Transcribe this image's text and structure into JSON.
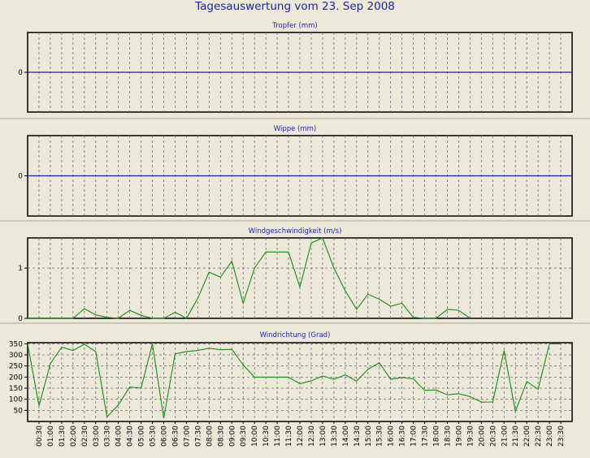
{
  "window": {
    "title": "Tagesauswertung vom 23. Sep 2008"
  },
  "chart_data": [
    {
      "id": "tropfer",
      "type": "line",
      "title": "Tropfer (mm)",
      "ylim": [
        -1,
        1
      ],
      "yticks": [
        0
      ],
      "zero_line": true,
      "x": [],
      "values": []
    },
    {
      "id": "wippe",
      "type": "line",
      "title": "Wippe (mm)",
      "ylim": [
        -1,
        1
      ],
      "yticks": [
        0
      ],
      "zero_line": true,
      "x": [],
      "values": []
    },
    {
      "id": "windgeschwindigkeit",
      "type": "line",
      "title": "Windgeschwindigkeit (m/s)",
      "ylim": [
        0,
        1.6
      ],
      "yticks": [
        0,
        1
      ],
      "x": [
        "00:00",
        "00:30",
        "01:00",
        "01:30",
        "02:00",
        "02:30",
        "03:00",
        "03:30",
        "04:00",
        "04:30",
        "05:00",
        "05:30",
        "06:00",
        "06:30",
        "07:00",
        "07:30",
        "08:00",
        "08:30",
        "09:00",
        "09:30",
        "10:00",
        "10:30",
        "11:00",
        "11:30",
        "12:00",
        "12:30",
        "13:00",
        "13:30",
        "14:00",
        "14:30",
        "15:00",
        "15:30",
        "16:00",
        "16:30",
        "17:00",
        "17:30",
        "18:00",
        "18:30",
        "19:00",
        "19:30"
      ],
      "values": [
        0,
        0,
        0,
        0,
        0,
        0.19,
        0.07,
        0.02,
        0,
        0.16,
        0.06,
        0,
        0,
        0.12,
        0,
        0.4,
        0.92,
        0.82,
        1.14,
        0.3,
        1.0,
        1.32,
        1.32,
        1.32,
        0.62,
        1.5,
        1.6,
        1.0,
        0.55,
        0.18,
        0.48,
        0.38,
        0.24,
        0.3,
        0.02,
        0,
        0,
        0.18,
        0.16,
        0
      ]
    },
    {
      "id": "windrichtung",
      "type": "line",
      "title": "Windrichtung (Grad)",
      "ylim": [
        0,
        355
      ],
      "yticks": [
        50,
        100,
        150,
        200,
        250,
        300,
        350
      ],
      "x": [
        "00:00",
        "00:30",
        "01:00",
        "01:30",
        "02:00",
        "02:30",
        "03:00",
        "03:30",
        "04:00",
        "04:30",
        "05:00",
        "05:30",
        "06:00",
        "06:30",
        "07:00",
        "07:30",
        "08:00",
        "08:30",
        "09:00",
        "09:30",
        "10:00",
        "10:30",
        "11:00",
        "11:30",
        "12:00",
        "12:30",
        "13:00",
        "13:30",
        "14:00",
        "14:30",
        "15:00",
        "15:30",
        "16:00",
        "16:30",
        "17:00",
        "17:30",
        "18:00",
        "18:30",
        "19:00",
        "19:30",
        "20:00",
        "20:30",
        "21:00",
        "21:30",
        "22:00",
        "22:30",
        "23:00",
        "23:30"
      ],
      "values": [
        350,
        70,
        260,
        335,
        320,
        348,
        315,
        20,
        75,
        155,
        150,
        350,
        15,
        305,
        315,
        320,
        330,
        323,
        325,
        255,
        200,
        200,
        200,
        200,
        170,
        183,
        205,
        190,
        210,
        182,
        235,
        265,
        190,
        198,
        192,
        140,
        142,
        120,
        125,
        112,
        87,
        88,
        320,
        45,
        180,
        145,
        350,
        350
      ]
    }
  ],
  "x_axis_labels": [
    "00:30",
    "01:00",
    "01:30",
    "02:00",
    "02:30",
    "03:00",
    "03:30",
    "04:00",
    "04:30",
    "05:00",
    "05:30",
    "06:00",
    "06:30",
    "07:00",
    "07:30",
    "08:00",
    "08:30",
    "09:00",
    "09:30",
    "10:00",
    "10:30",
    "11:00",
    "11:30",
    "12:00",
    "12:30",
    "13:00",
    "13:30",
    "14:00",
    "14:30",
    "15:00",
    "15:30",
    "16:00",
    "16:30",
    "17:00",
    "17:30",
    "18:00",
    "18:30",
    "19:00",
    "19:30",
    "20:00",
    "20:30",
    "21:00",
    "21:30",
    "22:00",
    "22:30",
    "23:00",
    "23:30"
  ],
  "colors": {
    "background": "#ece9d8",
    "title": "#1f1fb0",
    "series": "#1a8a1a",
    "zero_line": "#2020b0"
  }
}
